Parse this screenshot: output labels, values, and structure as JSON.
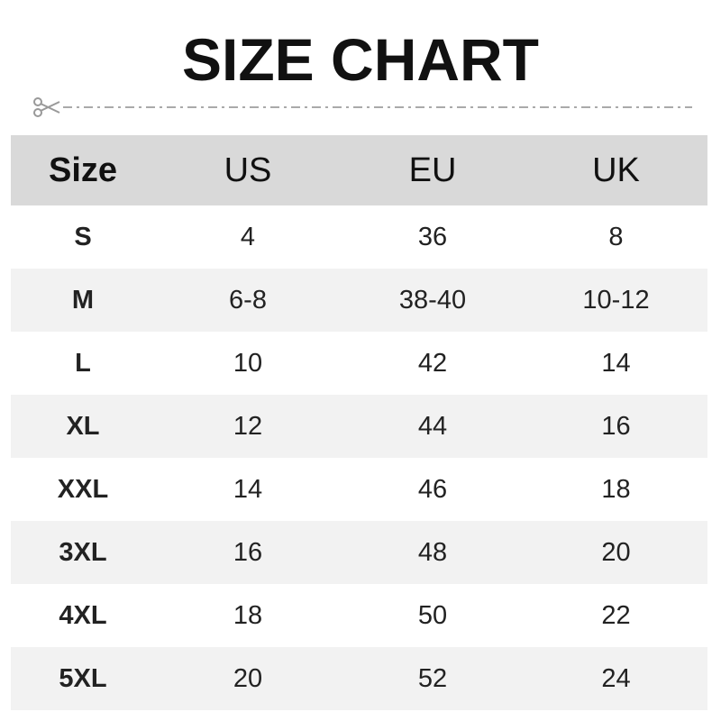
{
  "title": "SIZE CHART",
  "icons": {
    "cut": "scissors-icon"
  },
  "chart_data": {
    "type": "table",
    "columns": [
      "Size",
      "US",
      "EU",
      "UK"
    ],
    "rows": [
      [
        "S",
        "4",
        "36",
        "8"
      ],
      [
        "M",
        "6-8",
        "38-40",
        "10-12"
      ],
      [
        "L",
        "10",
        "42",
        "14"
      ],
      [
        "XL",
        "12",
        "44",
        "16"
      ],
      [
        "XXL",
        "14",
        "46",
        "18"
      ],
      [
        "3XL",
        "16",
        "48",
        "20"
      ],
      [
        "4XL",
        "18",
        "50",
        "22"
      ],
      [
        "5XL",
        "20",
        "52",
        "24"
      ]
    ]
  },
  "colors": {
    "header_bg": "#d9d9d9",
    "alt_row_bg": "#f2f2f2",
    "cutline": "#aaaaaa"
  }
}
